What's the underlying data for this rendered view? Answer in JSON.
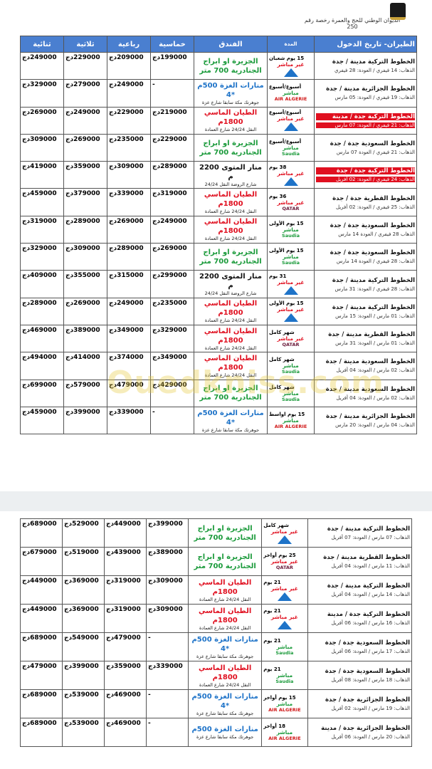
{
  "header": {
    "title": "الديوان الوطني للحج والعمرة",
    "license": "رخصة رقم 250"
  },
  "watermark": "Ouedkniss.com",
  "columns": [
    "الطيران- تاريخ الدخول",
    "المدة",
    "الفندق",
    "خماسية",
    "رباعية",
    "ثلاثية",
    "ثنائية"
  ],
  "tables": [
    {
      "rows": [
        {
          "airline": "الخطوط التركية مدينة / جدة",
          "dates": "الذهاب: 14 فيفري / العودة: 28 فيفري",
          "duration": "15 يوم شعبان",
          "flight": "غير مباشر",
          "flight_color": "#e01020",
          "hotel": "الجزيرة او ابراج الجنادرية 700 متر",
          "hotel_color": "#1a9a3a",
          "prices": [
            "199000دج",
            "209000دج",
            "229000دج",
            "249000دج"
          ]
        },
        {
          "airline": "الخطوط الجزائرية مدينة / جدة",
          "dates": "الذهاب: 19 فيفري / العودة: 05 مارس",
          "duration": "أسبوع/أسبوع",
          "flight": "مباشر",
          "flight_color": "#1a9a3a",
          "logo": "AIR ALGERIE",
          "logo_color": "#d01818",
          "hotel": "منارات الغزة 500م *4",
          "hotel_note": "جوهرتك مكة سابقا شارع عزة",
          "hotel_color": "#1e73c8",
          "prices": [
            "-",
            "249000دج",
            "279000دج",
            "329000دج"
          ]
        },
        {
          "airline": "الخطوط التركية جدة / مدينة",
          "dates": "الذهاب: 21 فيفري / العودة: 07 مارس",
          "highlight": true,
          "duration": "أسبوع/أسبوع",
          "flight": "غير مباشر",
          "flight_color": "#e01020",
          "hotel": "الطيان الماسي 1800م",
          "hotel_note": "النقل 24/24 شارع العمادة",
          "hotel_color": "#e01020",
          "prices": [
            "219000دج",
            "229000دج",
            "249000دج",
            "269000دج"
          ]
        },
        {
          "airline": "الخطوط السعودية جدة / جدة",
          "dates": "الذهاب: 21 فيفري / العودة 07 مارس",
          "duration": "أسبوع/أسبوع",
          "flight": "مباشر",
          "flight_color": "#1a9a3a",
          "logo": "Saudia",
          "logo_color": "#1a9a3a",
          "hotel": "الجزيرة او ابراج الجنادرية 700 متر",
          "hotel_color": "#1a9a3a",
          "prices": [
            "229000دج",
            "235000دج",
            "269000دج",
            "309000دج"
          ]
        },
        {
          "airline": "الخطوط التركية جدة / جدة",
          "dates": "الذهاب: 24 فيفري / العودة: 02 أفريل",
          "highlight": true,
          "duration": "38 يوم",
          "flight": "غير مباشر",
          "flight_color": "#e01020",
          "hotel": "منار المتوى 2200 م",
          "hotel_note": "شارع الروضة النقل 24/24",
          "hotel_color": "#111111",
          "prices": [
            "289000دج",
            "309000دج",
            "359000دج",
            "419000دج"
          ]
        },
        {
          "airline": "الخطوط القطرية جدة / جدة",
          "dates": "الذهاب: 25 فيفري / العودة: 02 أفريل",
          "duration": "36 يوم",
          "flight": "غير مباشر",
          "flight_color": "#e01020",
          "logo": "QATAR",
          "logo_color": "#6a1a3a",
          "hotel": "الطيان الماسي 1800م",
          "hotel_note": "النقل 24/24 شارع العمادة",
          "hotel_color": "#e01020",
          "prices": [
            "319000دج",
            "339000دج",
            "379000دج",
            "459000دج"
          ]
        },
        {
          "airline": "الخطوط السعودية جدة / جدة",
          "dates": "الذهاب 28 فيفري / العودة 14 مارس",
          "duration": "15 يوم الأولى",
          "flight": "مباشر",
          "flight_color": "#1a9a3a",
          "logo": "Saudia",
          "logo_color": "#1a9a3a",
          "hotel": "الطيان الماسي 1800م",
          "hotel_note": "النقل 24/24 شارع العمادة",
          "hotel_color": "#e01020",
          "prices": [
            "249000دج",
            "269000دج",
            "289000دج",
            "319000دج"
          ]
        },
        {
          "airline": "الخطوط السعودية جدة / جدة",
          "dates": "الذهاب: 28 فيفري / العودة 14 مارس",
          "duration": "15 يوم الأولى",
          "flight": "مباشر",
          "flight_color": "#1a9a3a",
          "logo": "Saudia",
          "logo_color": "#1a9a3a",
          "hotel": "الجزيرة او ابراج الجنادرية 700 متر",
          "hotel_color": "#1a9a3a",
          "prices": [
            "269000دج",
            "289000دج",
            "309000دج",
            "329000دج"
          ]
        },
        {
          "airline": "الخطوط التركية مدينة / جدة",
          "dates": "الذهاب: 28 فيفري / العودة: 31 مارس",
          "duration": "31 يوم",
          "flight": "غير مباشر",
          "flight_color": "#e01020",
          "hotel": "منار المتوى 2200 م",
          "hotel_note": "شارع الروضة النقل 24/24",
          "hotel_color": "#111111",
          "prices": [
            "299000دج",
            "315000دج",
            "355000دج",
            "409000دج"
          ]
        },
        {
          "airline": "الخطوط التركية مدينة / جدة",
          "dates": "الذهاب: 01 مارس / العودة: 15 مارس",
          "duration": "15 يوم الأولى",
          "flight": "غير مباشر",
          "flight_color": "#e01020",
          "hotel": "الطيان الماسي 1800م",
          "hotel_note": "النقل 24/24 شارع العمادة",
          "hotel_color": "#e01020",
          "prices": [
            "235000دج",
            "249000دج",
            "269000دج",
            "289000دج"
          ]
        },
        {
          "airline": "الخطوط القطرية مدينة / جدة",
          "dates": "الذهاب: 01 مارس / العودة: 31 مارس",
          "duration": "شهر كامل",
          "flight": "غير مباشر",
          "flight_color": "#e01020",
          "logo": "QATAR",
          "logo_color": "#6a1a3a",
          "hotel": "الطيان الماسي 1800م",
          "hotel_note": "النقل 24/24 شارع العمادة",
          "hotel_color": "#e01020",
          "prices": [
            "329000دج",
            "349000دج",
            "389000دج",
            "469000دج"
          ]
        },
        {
          "airline": "الخطوط السعودية مدينة / جدة",
          "dates": "الذهاب: 02 مارس / العودة: 04 أفريل",
          "duration": "شهر كامل",
          "flight": "مباشر",
          "flight_color": "#1a9a3a",
          "logo": "Saudia",
          "logo_color": "#1a9a3a",
          "hotel": "الطيان الماسي 1800م",
          "hotel_note": "النقل 24/24 شارع العمادة",
          "hotel_color": "#e01020",
          "prices": [
            "349000دج",
            "374000دج",
            "414000دج",
            "494000دج"
          ]
        },
        {
          "airline": "الخطوط السعودية مدينة / جدة",
          "dates": "الذهاب: 02 مارس / العودة: 04 أفريل",
          "duration": "شهر كامل",
          "flight": "مباشر",
          "flight_color": "#1a9a3a",
          "logo": "Saudia",
          "logo_color": "#1a9a3a",
          "hotel": "الجزيرة او ابراج الجنادرية 700 متر",
          "hotel_color": "#1a9a3a",
          "prices": [
            "429000دج",
            "479000دج",
            "579000دج",
            "699000دج"
          ]
        },
        {
          "airline": "الخطوط الجزائرية مدينة / جدة",
          "dates": "الذهاب: 04 مارس / العودة: 20 مارس",
          "duration": "15 يوم اواسط",
          "flight": "مباشر",
          "flight_color": "#1a9a3a",
          "logo": "AIR ALGERIE",
          "logo_color": "#d01818",
          "hotel": "منارات الغزة 500م *4",
          "hotel_note": "جوهرتك مكة سابقا شارع عزة",
          "hotel_color": "#1e73c8",
          "prices": [
            "-",
            "339000دج",
            "399000دج",
            "459000دج"
          ]
        }
      ]
    },
    {
      "rows": [
        {
          "airline": "الخطوط التركية مدينة / جدة",
          "dates": "الذهاب: 07 مارس / العودة: 07 أفريل",
          "duration": "شهر كامل",
          "flight": "غير مباشر",
          "flight_color": "#e01020",
          "hotel": "الجزيرة او ابراج الجنادرية 700 متر",
          "hotel_color": "#1a9a3a",
          "prices": [
            "399000دج",
            "449000دج",
            "529000دج",
            "689000دج"
          ]
        },
        {
          "airline": "الخطوط القطرية مدينة / جدة",
          "dates": "الذهاب: 11 مارس / العودة: 04 أفريل",
          "duration": "25 يوم أواخر",
          "flight": "غير مباشر",
          "flight_color": "#e01020",
          "logo": "QATAR",
          "logo_color": "#6a1a3a",
          "hotel": "الجزيرة او ابراج الجنادرية 700 متر",
          "hotel_color": "#1a9a3a",
          "prices": [
            "389000دج",
            "439000دج",
            "519000دج",
            "679000دج"
          ]
        },
        {
          "airline": "الخطوط التركية مدينة / جدة",
          "dates": "الذهاب: 14 مارس / العودة: 04 أفريل",
          "duration": "21 يوم",
          "flight": "غير مباشر",
          "flight_color": "#e01020",
          "hotel": "الطيان الماسي 1800م",
          "hotel_note": "النقل 24/24 شارع العمادة",
          "hotel_color": "#e01020",
          "prices": [
            "309000دج",
            "319000دج",
            "369000دج",
            "449000دج"
          ]
        },
        {
          "airline": "الخطوط التركية جدة / مدينة",
          "dates": "الذهاب: 16 مارس / العودة: 06 أفريل",
          "duration": "21 يوم",
          "flight": "غير مباشر",
          "flight_color": "#e01020",
          "hotel": "الطيان الماسي 1800م",
          "hotel_note": "النقل 24/24 شارع العمادة",
          "hotel_color": "#e01020",
          "prices": [
            "309000دج",
            "319000دج",
            "369000دج",
            "449000دج"
          ]
        },
        {
          "airline": "الخطوط السعودية جدة / جدة",
          "dates": "الذهاب: 17 مارس / العودة: 06 أفريل",
          "duration": "21 يوم",
          "flight": "مباشر",
          "flight_color": "#1a9a3a",
          "logo": "Saudia",
          "logo_color": "#1a9a3a",
          "hotel": "منارات الغزة 500م *4",
          "hotel_note": "جوهرتك مكة سابقا شارع عزة",
          "hotel_color": "#1e73c8",
          "prices": [
            "-",
            "479000دج",
            "549000دج",
            "689000دج"
          ]
        },
        {
          "airline": "الخطوط السعودية جدة / جدة",
          "dates": "الذهاب: 18 مارس / العودة: 08 أفريل",
          "duration": "21 يوم",
          "flight": "مباشر",
          "flight_color": "#1a9a3a",
          "logo": "Saudia",
          "logo_color": "#1a9a3a",
          "hotel": "الطيان الماسي 1800م",
          "hotel_note": "النقل 24/24 شارع العمادة",
          "hotel_color": "#e01020",
          "prices": [
            "339000دج",
            "359000دج",
            "399000دج",
            "479000دج"
          ]
        },
        {
          "airline": "الخطوط الجزائرية جدة / جدة",
          "dates": "الذهاب: 19 مارس / العودة: 02 أفريل",
          "duration": "15 يوم أواخر",
          "flight": "مباشر",
          "flight_color": "#1a9a3a",
          "logo": "AIR ALGERIE",
          "logo_color": "#d01818",
          "hotel": "منارات الغزة 500م *4",
          "hotel_note": "جوهرتك مكة سابقا شارع عزة",
          "hotel_color": "#1e73c8",
          "prices": [
            "-",
            "469000دج",
            "539000دج",
            "689000دج"
          ]
        },
        {
          "airline": "الخطوط الجزائرية جدة / مدينة",
          "dates": "الذهاب: 20 مارس / العودة: 06 أفريل",
          "duration": "18 أواخر",
          "flight": "مباشر",
          "flight_color": "#1a9a3a",
          "logo": "AIR ALGERIE",
          "logo_color": "#d01818",
          "hotel": "منارات الغزة 500م",
          "hotel_note": "جوهرتك مكة سابقا شارع عزة",
          "hotel_color": "#1e73c8",
          "prices": [
            "-",
            "469000دج",
            "539000دج",
            "689000دج"
          ]
        }
      ]
    }
  ]
}
